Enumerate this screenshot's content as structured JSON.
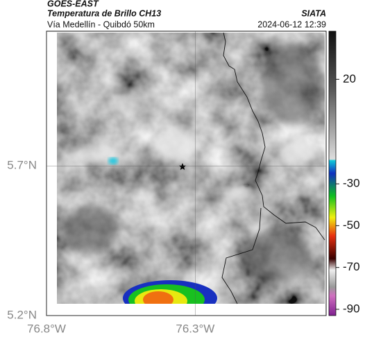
{
  "header": {
    "title": "GOES-EAST",
    "subtitle": "Temperatura de Brillo CH13",
    "source": "SIATA",
    "route": "Vía Medellín - Quibdó 50km",
    "timestamp": "2024-06-12 12:39"
  },
  "map": {
    "xlim": [
      -76.8,
      -75.86
    ],
    "ylim": [
      5.2,
      6.15
    ],
    "xticks": [
      {
        "value": -76.8,
        "label": "76.8°W"
      },
      {
        "value": -76.3,
        "label": "76.3°W"
      }
    ],
    "yticks": [
      {
        "value": 5.2,
        "label": "5.2°N"
      },
      {
        "value": 5.7,
        "label": "5.7°N"
      }
    ],
    "grid": true
  },
  "colorbar": {
    "range": [
      -93,
      43
    ],
    "ticks": [
      20,
      -30,
      -50,
      -70,
      -90
    ]
  }
}
